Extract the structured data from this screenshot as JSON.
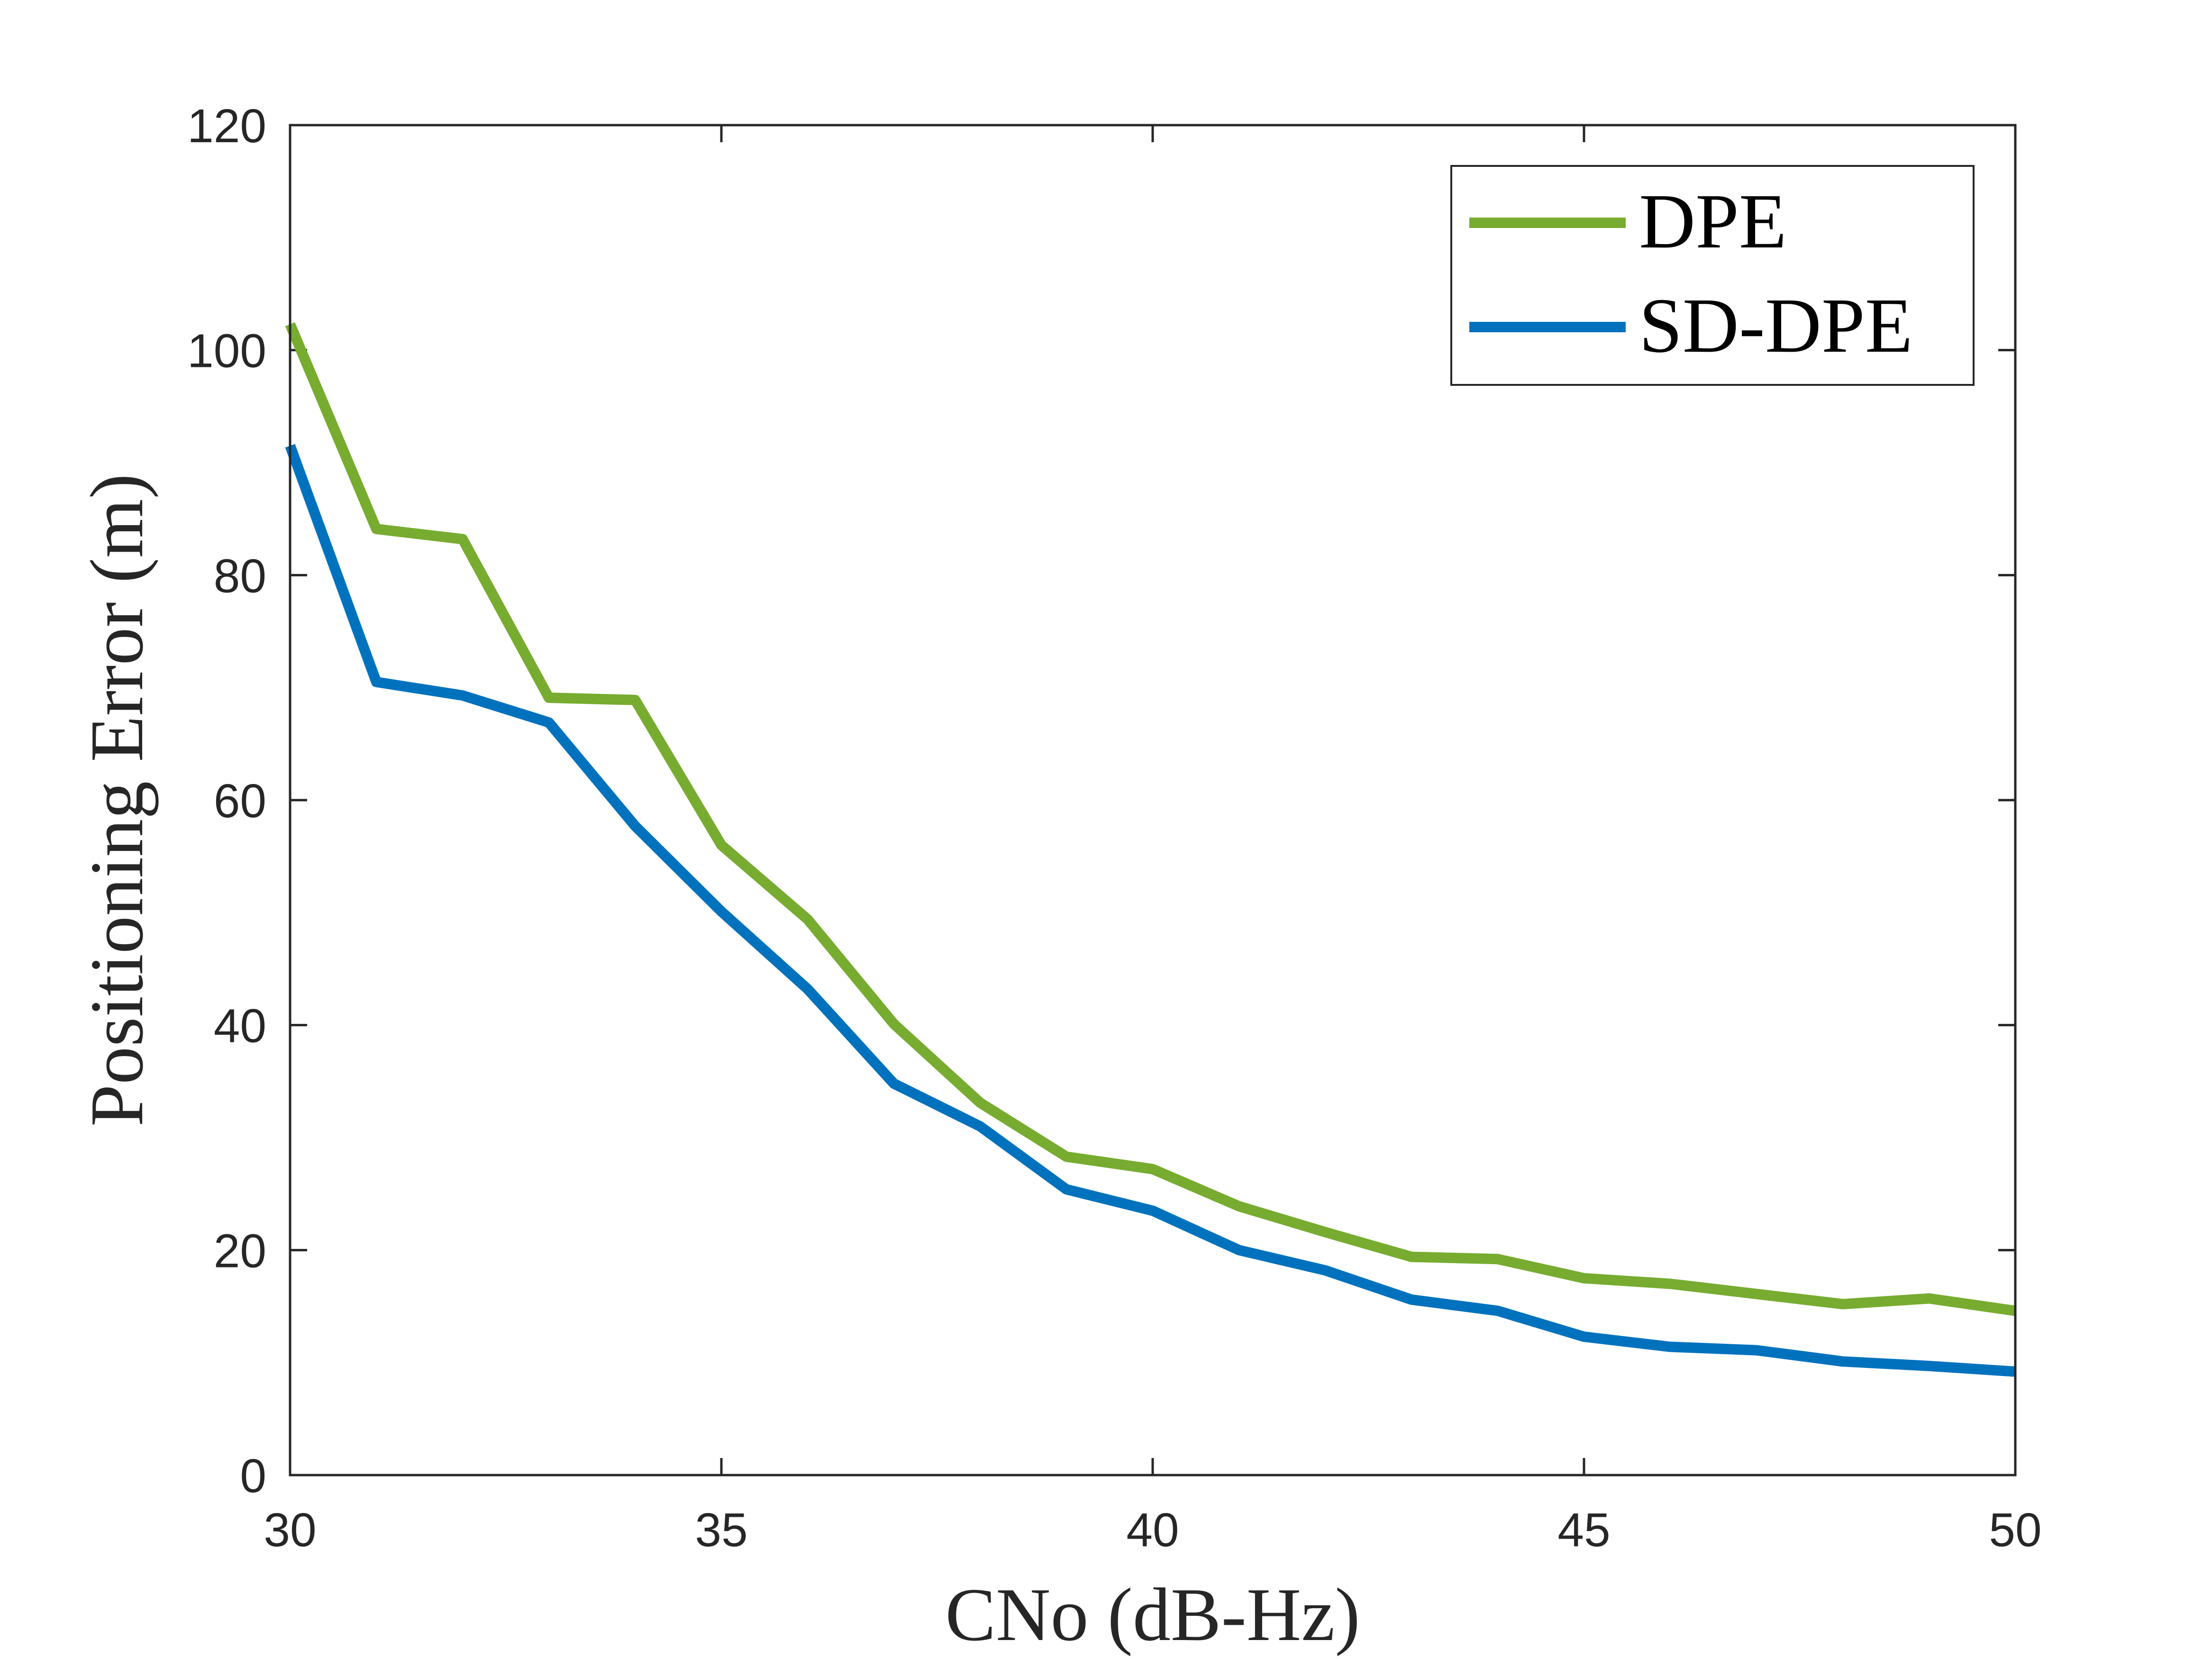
{
  "chart_data": {
    "type": "line",
    "title": "",
    "xlabel": "CNo (dB-Hz)",
    "ylabel": "Positioning Error (m)",
    "xlim": [
      30,
      50
    ],
    "ylim": [
      0,
      120
    ],
    "xticks": [
      30,
      35,
      40,
      45,
      50
    ],
    "yticks": [
      0,
      20,
      40,
      60,
      80,
      100,
      120
    ],
    "xtick_labels": [
      "30",
      "35",
      "40",
      "45",
      "50"
    ],
    "ytick_labels": [
      "0",
      "20",
      "40",
      "60",
      "80",
      "100",
      "120"
    ],
    "grid": false,
    "legend_position": "top-right",
    "x": [
      30,
      31,
      32,
      33,
      34,
      35,
      36,
      37,
      38,
      39,
      40,
      41,
      42,
      43,
      44,
      45,
      46,
      47,
      48,
      49,
      50
    ],
    "series": [
      {
        "name": "DPE",
        "color": "#77AC30",
        "values": [
          102.3,
          84.1,
          83.2,
          69.1,
          68.9,
          56.0,
          49.4,
          40.1,
          33.1,
          28.3,
          27.2,
          23.9,
          21.6,
          19.4,
          19.2,
          17.5,
          17.0,
          16.1,
          15.2,
          15.7,
          14.6
        ]
      },
      {
        "name": "SD-DPE",
        "color": "#0072BD",
        "values": [
          91.5,
          70.5,
          69.3,
          66.9,
          57.7,
          50.1,
          43.2,
          34.8,
          31.0,
          25.4,
          23.5,
          20.0,
          18.2,
          15.6,
          14.6,
          12.3,
          11.4,
          11.1,
          10.1,
          9.7,
          9.2
        ]
      }
    ]
  }
}
